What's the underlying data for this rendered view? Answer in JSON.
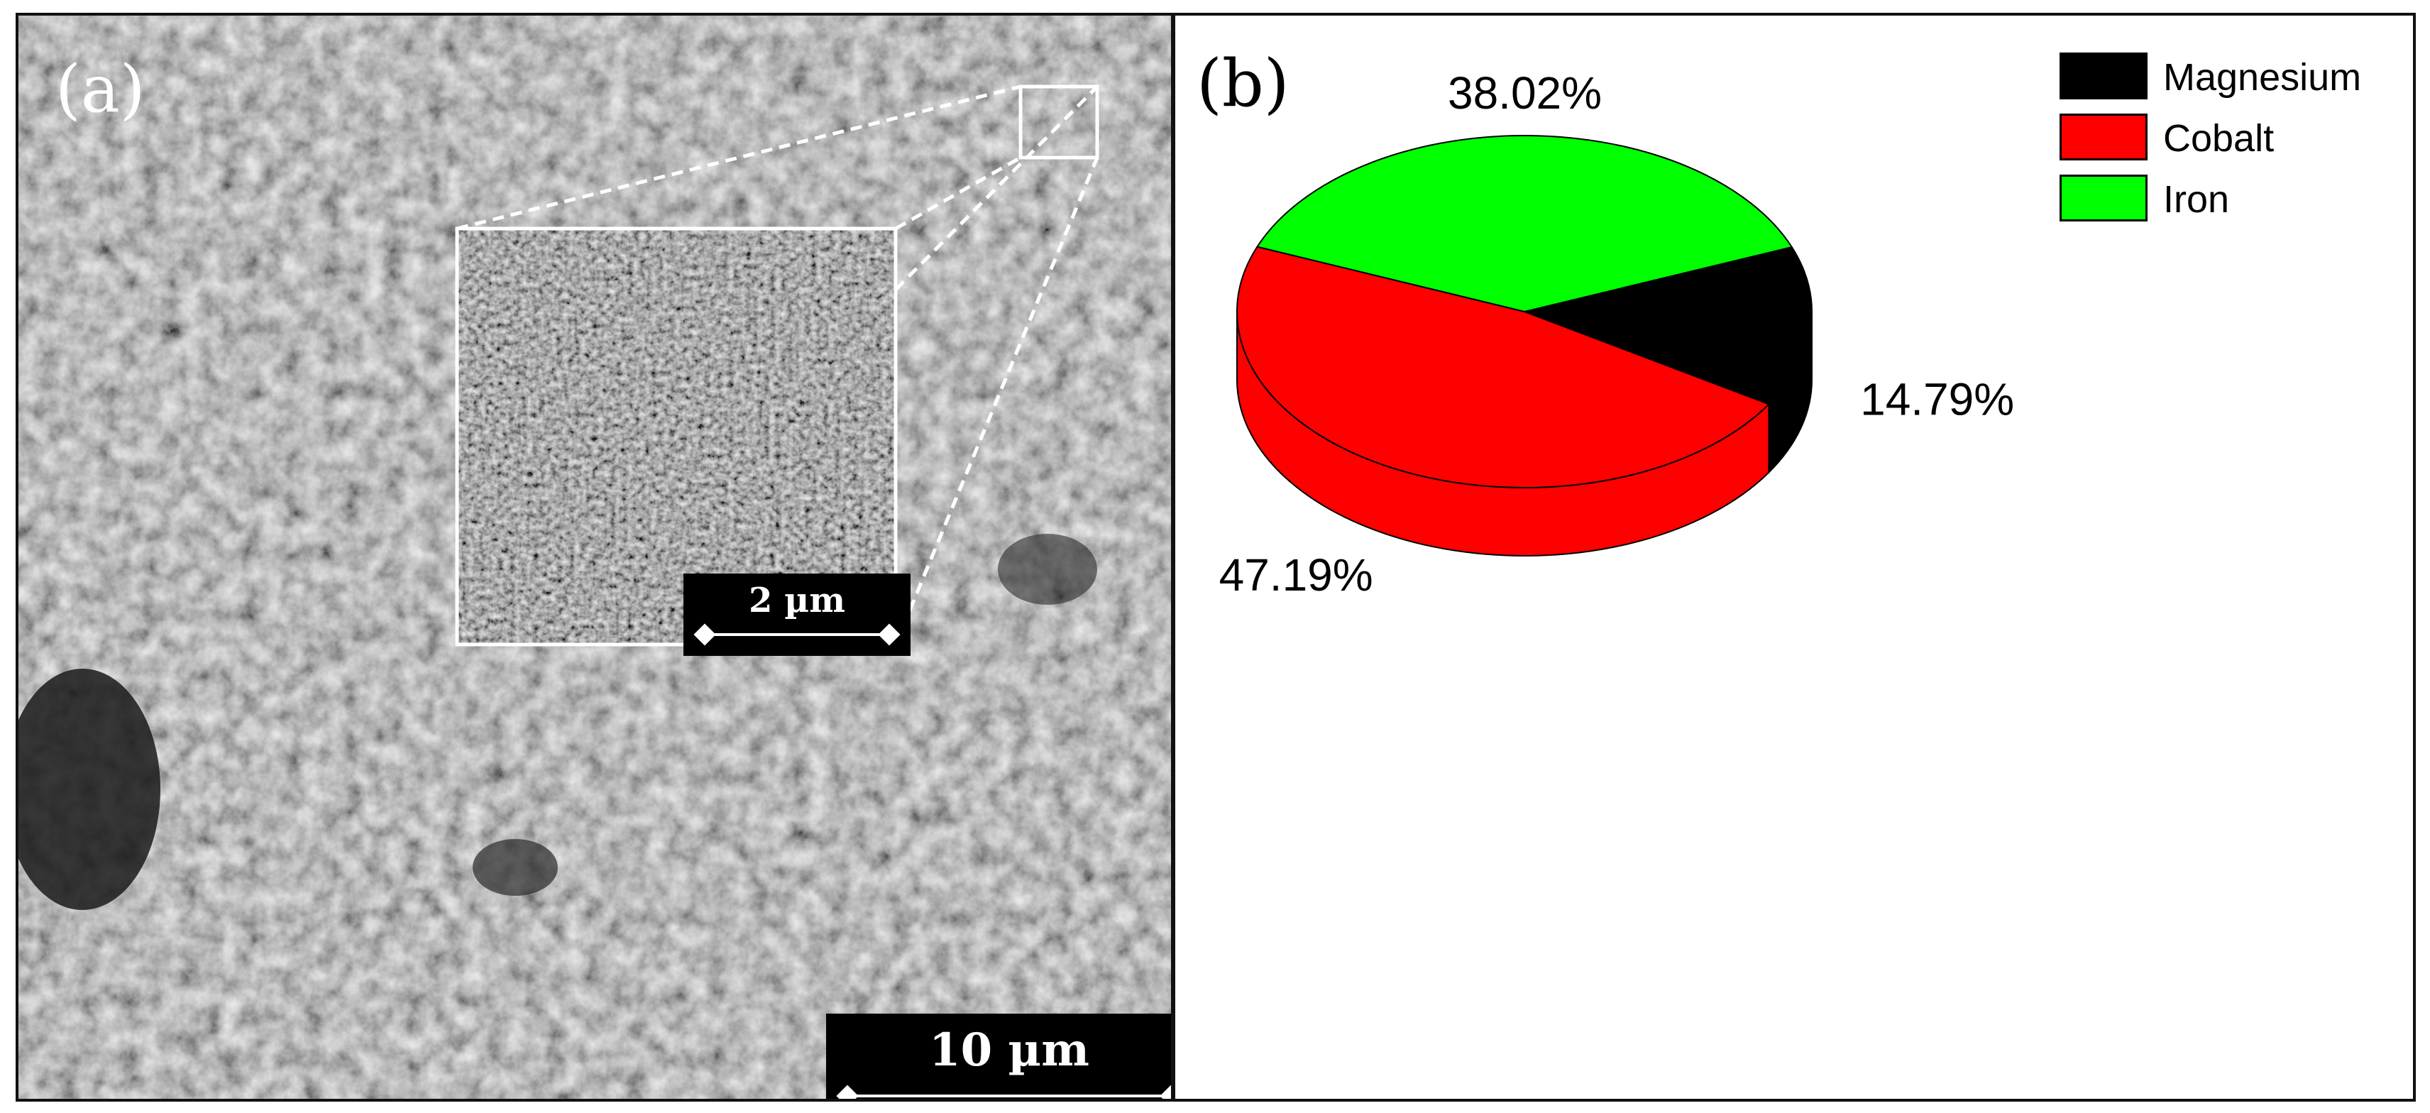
{
  "panels": {
    "a": {
      "label": "(a)",
      "inset_scale": "2 µm",
      "main_scale": "10 µm"
    },
    "b": {
      "label": "(b)"
    }
  },
  "chart_data": {
    "type": "pie",
    "title": "",
    "legend_position": "top-right",
    "three_d": true,
    "series": [
      {
        "name": "Magnesium",
        "value": 14.79,
        "label": "14.79%",
        "color": "#000000"
      },
      {
        "name": "Cobalt",
        "value": 47.19,
        "label": "47.19%",
        "color": "#ff0000"
      },
      {
        "name": "Iron",
        "value": 38.02,
        "label": "38.02%",
        "color": "#00ff00"
      }
    ]
  }
}
